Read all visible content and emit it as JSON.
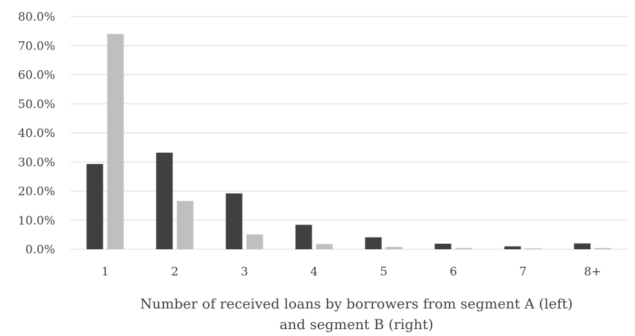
{
  "chart_data": {
    "type": "bar",
    "categories": [
      "1",
      "2",
      "3",
      "4",
      "5",
      "6",
      "7",
      "8+"
    ],
    "series": [
      {
        "values": [
          29.3,
          33.2,
          19.2,
          8.4,
          4.1,
          1.9,
          1.0,
          2.0
        ],
        "color": "#404040"
      },
      {
        "values": [
          74.0,
          16.6,
          5.1,
          1.8,
          0.8,
          0.4,
          0.3,
          0.4
        ],
        "color": "#bfbfbf"
      }
    ],
    "yticks": [
      "0.0%",
      "10.0%",
      "20.0%",
      "30.0%",
      "40.0%",
      "50.0%",
      "60.0%",
      "70.0%",
      "80.0%"
    ],
    "ylim": [
      0,
      80
    ],
    "xlabel_line1": "Number of received loans by borrowers from segment A (left)",
    "xlabel_line2": "and segment B (right)",
    "grid": true,
    "legend": "none"
  }
}
